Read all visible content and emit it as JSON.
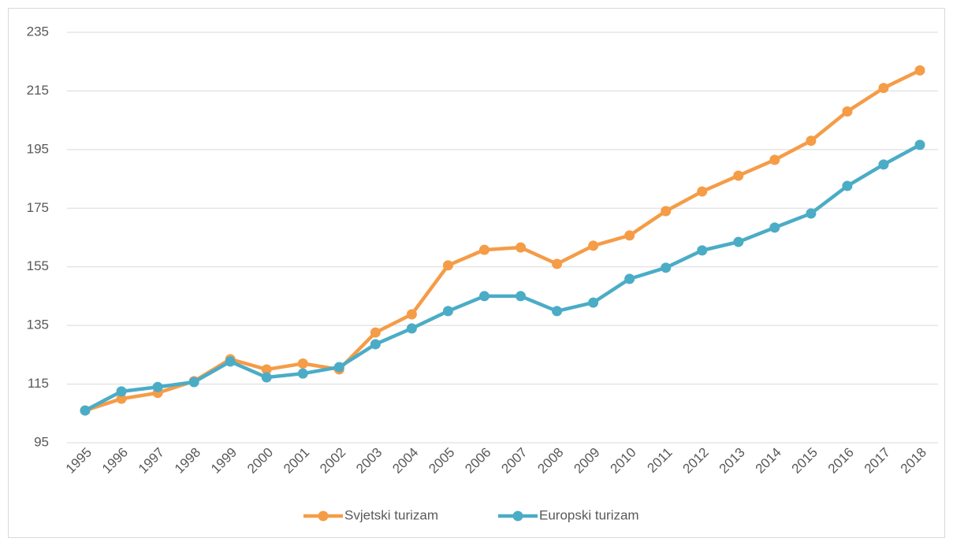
{
  "chart_data": {
    "type": "line",
    "categories": [
      "1995",
      "1996",
      "1997",
      "1998",
      "1999",
      "2000",
      "2001",
      "2002",
      "2003",
      "2004",
      "2005",
      "2006",
      "2007",
      "2008",
      "2009",
      "2010",
      "2011",
      "2012",
      "2013",
      "2014",
      "2015",
      "2016",
      "2017",
      "2018"
    ],
    "series": [
      {
        "name": "Svjetski turizam",
        "color": "#f59c47",
        "values": [
          106,
          110,
          112,
          116,
          123.5,
          120,
          122,
          120,
          132.6,
          138.8,
          155.5,
          160.8,
          161.6,
          156,
          162.2,
          165.7,
          174,
          180.7,
          186.1,
          191.5,
          198,
          208,
          216,
          222
        ]
      },
      {
        "name": "Europski turizam",
        "color": "#4bacc6",
        "values": [
          106,
          112.5,
          114,
          115.7,
          122.7,
          117.3,
          118.6,
          120.8,
          128.6,
          134,
          139.9,
          145,
          145,
          139.9,
          142.8,
          150.9,
          154.7,
          160.6,
          163.5,
          168.4,
          173.2,
          182.6,
          189.9,
          196.6
        ]
      }
    ],
    "ylim": [
      95,
      235
    ],
    "yticks": [
      95,
      115,
      135,
      155,
      175,
      195,
      215,
      235
    ],
    "grid": true,
    "legend": "bottom"
  }
}
